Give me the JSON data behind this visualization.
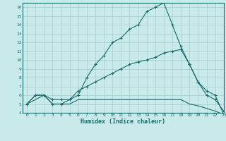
{
  "title": "",
  "xlabel": "Humidex (Indice chaleur)",
  "bg_color": "#c8eaea",
  "grid_color": "#a8cccc",
  "line_color": "#1a6b6b",
  "xlim": [
    -0.5,
    23
  ],
  "ylim": [
    4,
    16.5
  ],
  "xticks": [
    0,
    1,
    2,
    3,
    4,
    5,
    6,
    7,
    8,
    9,
    10,
    11,
    12,
    13,
    14,
    15,
    16,
    17,
    18,
    19,
    20,
    21,
    22,
    23
  ],
  "yticks": [
    4,
    5,
    6,
    7,
    8,
    9,
    10,
    11,
    12,
    13,
    14,
    15,
    16
  ],
  "series1_x": [
    0,
    1,
    2,
    3,
    4,
    5,
    6,
    7,
    8,
    9,
    10,
    11,
    12,
    13,
    14,
    15,
    16,
    17,
    18,
    19,
    20,
    21,
    22,
    23
  ],
  "series1_y": [
    5.0,
    6.0,
    6.0,
    5.0,
    5.0,
    5.5,
    6.0,
    8.0,
    9.5,
    10.5,
    12.0,
    12.5,
    13.5,
    14.0,
    15.5,
    16.0,
    16.5,
    14.0,
    11.5,
    9.5,
    7.5,
    6.0,
    5.5,
    4.2
  ],
  "series2_x": [
    0,
    1,
    2,
    3,
    4,
    5,
    6,
    7,
    8,
    9,
    10,
    11,
    12,
    13,
    14,
    15,
    16,
    17,
    18,
    19,
    20,
    21,
    22,
    23
  ],
  "series2_y": [
    5.0,
    6.0,
    6.0,
    5.5,
    5.5,
    5.5,
    6.5,
    7.0,
    7.5,
    8.0,
    8.5,
    9.0,
    9.5,
    9.8,
    10.0,
    10.3,
    10.8,
    11.0,
    11.2,
    9.5,
    7.5,
    6.5,
    6.0,
    3.8
  ],
  "series3_x": [
    0,
    1,
    2,
    3,
    4,
    5,
    6,
    7,
    8,
    9,
    10,
    11,
    12,
    13,
    14,
    15,
    16,
    17,
    18,
    19,
    20,
    21,
    22,
    23
  ],
  "series3_y": [
    5.0,
    5.5,
    6.0,
    5.0,
    5.0,
    5.0,
    5.5,
    5.5,
    5.5,
    5.5,
    5.5,
    5.5,
    5.5,
    5.5,
    5.5,
    5.5,
    5.5,
    5.5,
    5.5,
    5.0,
    4.8,
    4.5,
    4.2,
    3.8
  ]
}
